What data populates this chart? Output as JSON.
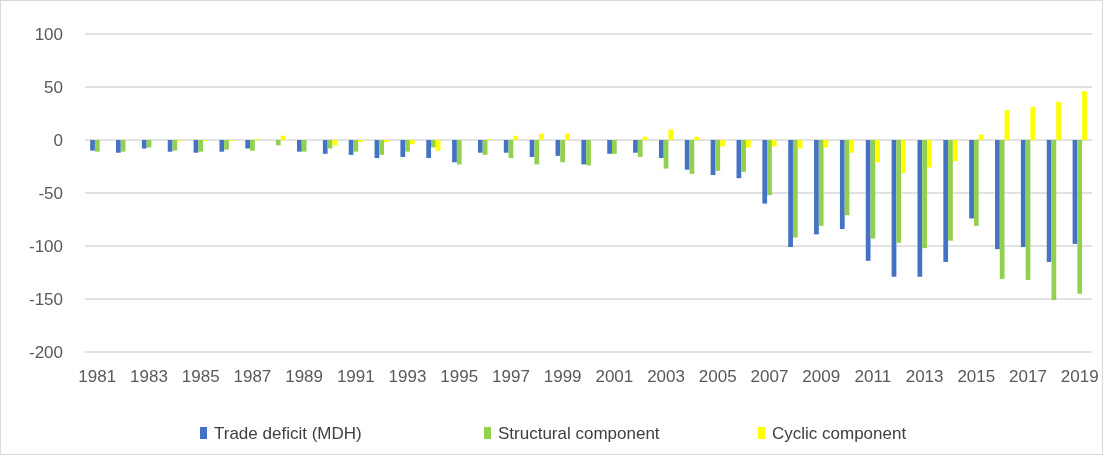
{
  "chart_data": {
    "type": "bar",
    "categories": [
      "1981",
      null,
      "1983",
      null,
      "1985",
      null,
      "1987",
      null,
      "1989",
      null,
      "1991",
      null,
      "1993",
      null,
      "1995",
      null,
      "1997",
      null,
      "1999",
      null,
      "2001",
      null,
      "2003",
      null,
      "2005",
      null,
      "2007",
      null,
      "2009",
      null,
      "2011",
      null,
      "2013",
      null,
      "2015",
      null,
      "2017",
      null,
      "2019"
    ],
    "series": [
      {
        "name": "Trade deficit (MDH)",
        "color": "#4472c4",
        "values": [
          -10,
          -12,
          -8,
          -11,
          -12,
          -11,
          -8,
          null,
          -11,
          -13,
          -14,
          -17,
          -16,
          -17,
          -21,
          -12,
          -12,
          -16,
          -15,
          -23,
          -13,
          -12,
          -17,
          -28,
          -33,
          -36,
          -60,
          -101,
          -89,
          -84,
          -114,
          -129,
          -129,
          -115,
          -74,
          -103,
          -101,
          -115,
          -98
        ]
      },
      {
        "name": "Structural component",
        "color": "#92d050",
        "values": [
          -11,
          -11,
          -7,
          -10,
          -11,
          -9,
          -10,
          -5,
          -11,
          -8,
          -11,
          -14,
          -11,
          -7,
          -23,
          -14,
          -17,
          -23,
          -21,
          -24,
          -13,
          -16,
          -27,
          -32,
          -29,
          -30,
          -52,
          -92,
          -81,
          -71,
          -93,
          -97,
          -102,
          -95,
          -81,
          -131,
          -132,
          -151,
          -145
        ]
      },
      {
        "name": "Cyclic component",
        "color": "#ffff00",
        "values": [
          0,
          0,
          0,
          -1,
          -1,
          -1,
          1,
          4,
          0,
          -5,
          -2,
          -2,
          -4,
          -10,
          0,
          1,
          4,
          6,
          6,
          0,
          0,
          3,
          10,
          3,
          -6,
          -7,
          -6,
          -8,
          -7,
          -12,
          -21,
          -31,
          -26,
          -20,
          5,
          28,
          31,
          36,
          46
        ]
      }
    ],
    "ylim": [
      -200,
      100
    ],
    "yticks": [
      -200,
      -150,
      -100,
      -50,
      0,
      50,
      100
    ],
    "grid": "y",
    "legend": "bottom"
  }
}
